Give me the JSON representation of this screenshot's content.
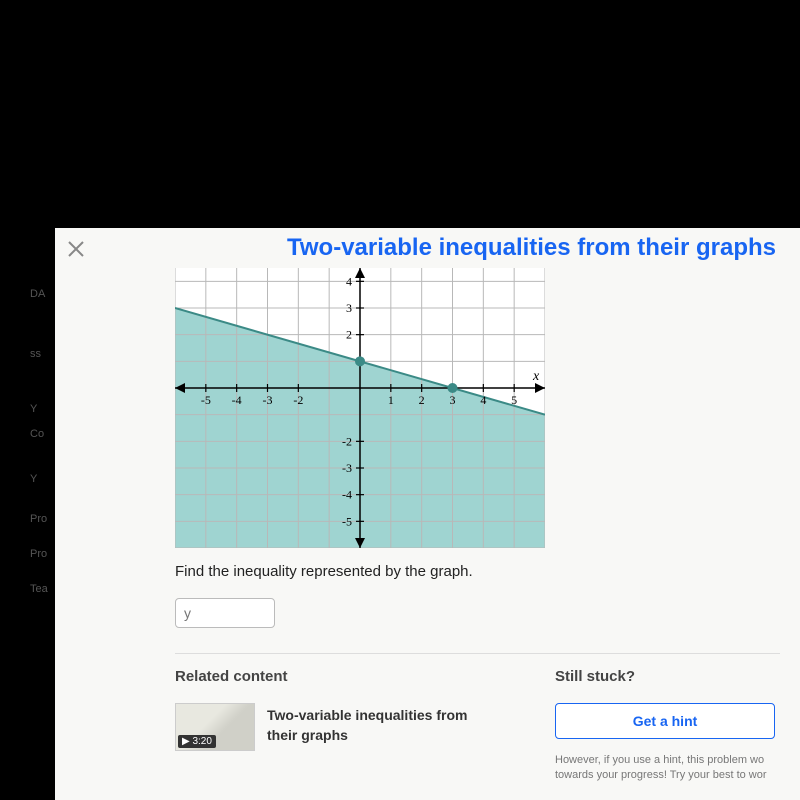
{
  "header": {
    "title": "Two-variable inequalities from their graphs"
  },
  "chart": {
    "type": "inequality-graph",
    "xlim": [
      -6,
      6
    ],
    "ylim": [
      -6,
      4.5
    ],
    "xticks": [
      -5,
      -4,
      -3,
      -2,
      1,
      2,
      3,
      4,
      5
    ],
    "yticks_pos": [
      2,
      3,
      4
    ],
    "yticks_neg": [
      -2,
      -3,
      -4,
      -5
    ],
    "x_axis_label": "x",
    "grid_color": "#b8b8b8",
    "axis_color": "#000000",
    "shade_color": "#8ecdc9",
    "line_color": "#3b8a86",
    "point_color": "#3b8a86",
    "background_color": "#ffffff",
    "line_points": [
      [
        -6,
        3
      ],
      [
        6,
        -1
      ]
    ],
    "boundary_solid": true,
    "shaded_side": "below",
    "marked_points": [
      [
        0,
        1
      ],
      [
        3,
        0
      ]
    ],
    "tick_fontsize": 12,
    "label_fontsize": 14
  },
  "prompt": "Find the inequality represented by the graph.",
  "input": {
    "placeholder": "y"
  },
  "related": {
    "heading": "Related content",
    "video_title": "Two-variable inequalities from their graphs",
    "video_time": "3:20"
  },
  "hint": {
    "heading": "Still stuck?",
    "button": "Get a hint",
    "note": "However, if you use a hint, this problem wo\ntowards your progress! Try your best to wor"
  },
  "side": {
    "items": [
      "DA",
      "ss",
      "Y",
      "Co",
      "Y",
      "Pro",
      "Pro",
      "Tea"
    ]
  }
}
